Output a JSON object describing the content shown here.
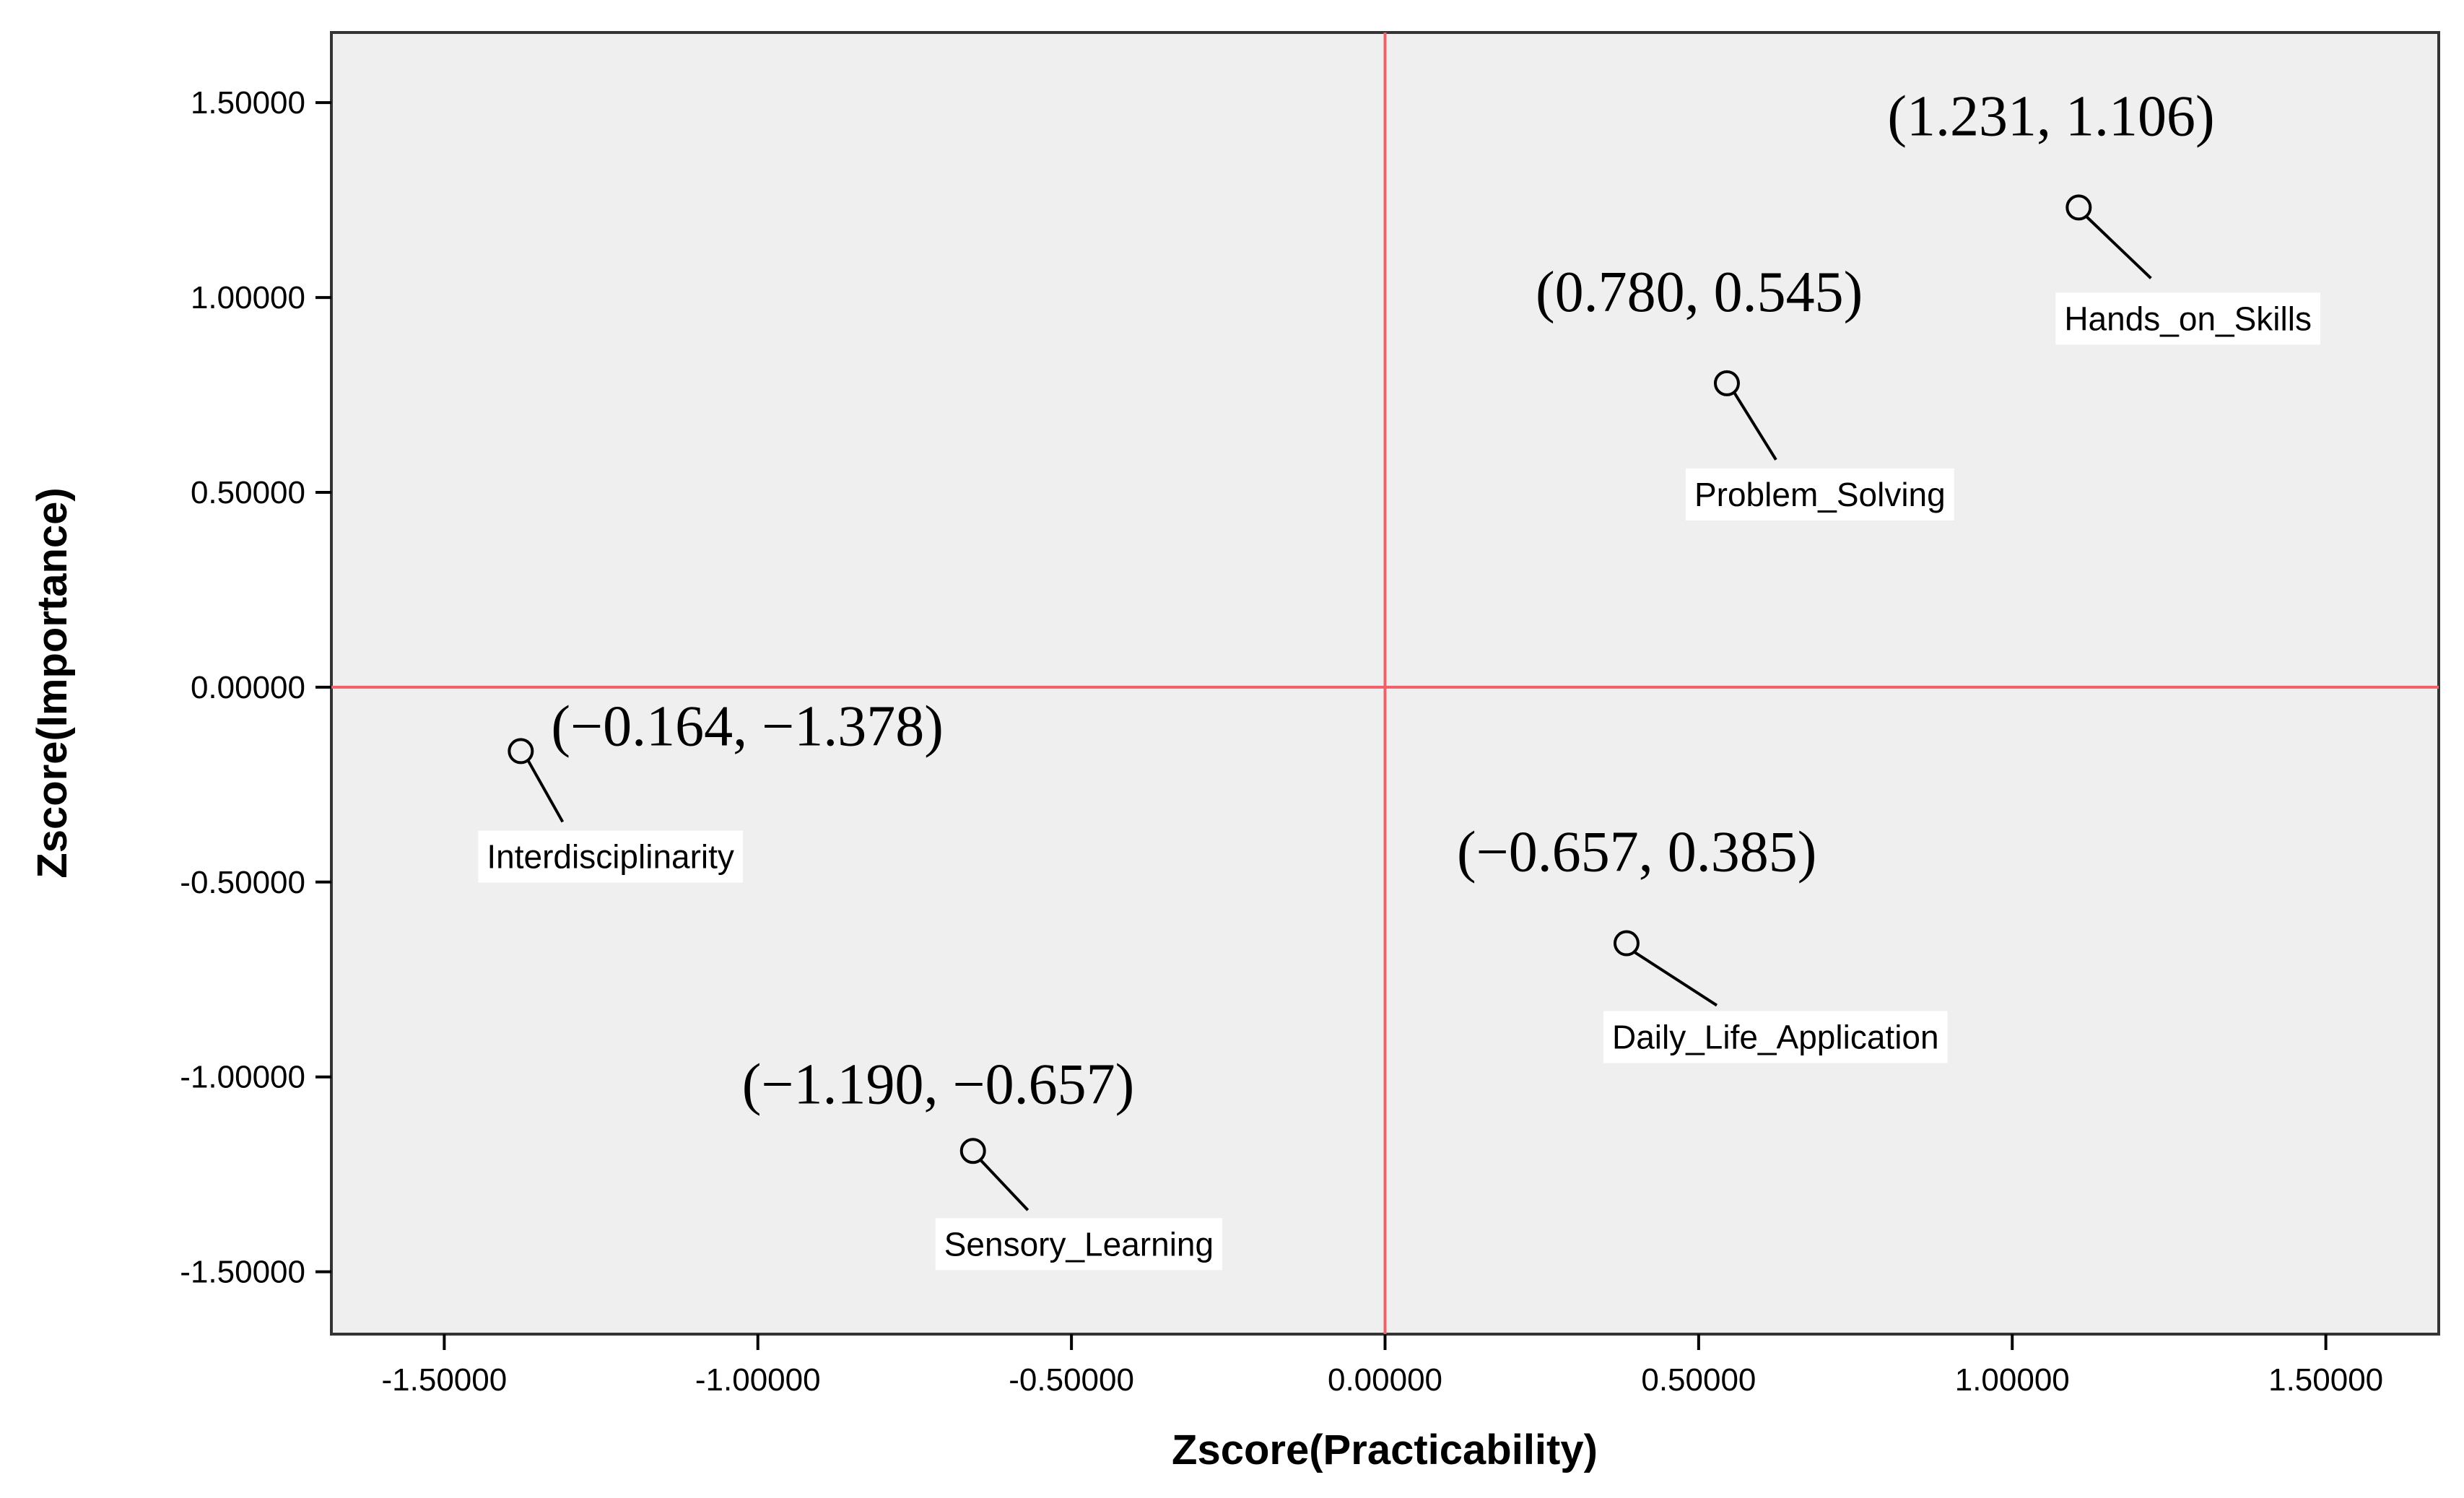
{
  "chart_data": {
    "type": "scatter",
    "xlabel": "Zscore(Practicability)",
    "ylabel": "Zscore(Importance)",
    "xlim": [
      -1.68,
      1.68
    ],
    "ylim": [
      -1.66,
      1.68
    ],
    "xticks": [
      -1.5,
      -1.0,
      -0.5,
      0.0,
      0.5,
      1.0,
      1.5
    ],
    "yticks": [
      1.5,
      1.0,
      0.5,
      0.0,
      -0.5,
      -1.0,
      -1.5
    ],
    "xtick_labels": [
      "-1.50000",
      "-1.00000",
      "-0.50000",
      "0.00000",
      "0.50000",
      "1.00000",
      "1.50000"
    ],
    "ytick_labels": [
      "1.50000",
      "1.00000",
      "0.50000",
      "0.00000",
      "-0.50000",
      "-1.00000",
      "-1.50000"
    ],
    "reference_lines": {
      "x": 0,
      "y": 0,
      "color": "#f0606a"
    },
    "background": "#efefef",
    "points": [
      {
        "label": "Hands_on_Skills",
        "x": 1.106,
        "y": 1.231,
        "annotation": "(1.231, 1.106)"
      },
      {
        "label": "Problem_Solving",
        "x": 0.545,
        "y": 0.78,
        "annotation": "(0.780, 0.545)"
      },
      {
        "label": "Interdisciplinarity",
        "x": -1.378,
        "y": -0.164,
        "annotation": "(−0.164, −1.378)"
      },
      {
        "label": "Daily_Life_Application",
        "x": 0.385,
        "y": -0.657,
        "annotation": "(−0.657, 0.385)"
      },
      {
        "label": "Sensory_Learning",
        "x": -0.657,
        "y": -1.19,
        "annotation": "(−1.190, −0.657)"
      }
    ],
    "grid": false,
    "legend": "none"
  }
}
